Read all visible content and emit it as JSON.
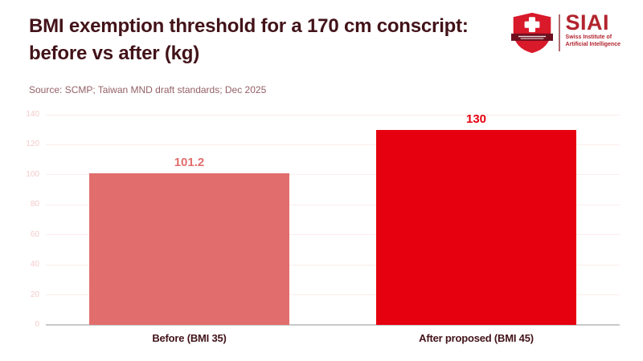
{
  "header": {
    "title": "BMI exemption threshold for a 170 cm conscript: before vs after (kg)",
    "source": "Source: SCMP; Taiwan MND draft standards; Dec 2025"
  },
  "logo": {
    "name": "SIAI",
    "subtitle_line1": "Swiss Institute of",
    "subtitle_line2": "Artificial Intelligence"
  },
  "chart_data": {
    "type": "bar",
    "title": "BMI exemption threshold for a 170 cm conscript: before vs after (kg)",
    "categories": [
      "Before (BMI 35)",
      "After proposed (BMI 45)"
    ],
    "values": [
      101.2,
      130
    ],
    "value_labels": [
      "101.2",
      "130"
    ],
    "bar_colors": [
      "#e26d6d",
      "#e6000f"
    ],
    "label_colors": [
      "#e26d6d",
      "#e6000f"
    ],
    "xlabel": "",
    "ylabel": "",
    "ylim": [
      0,
      140
    ],
    "yticks": [
      0,
      20,
      40,
      60,
      80,
      100,
      120,
      140
    ],
    "grid": true,
    "legend": false
  },
  "colors": {
    "background": "#ffffff",
    "title": "#421319",
    "source": "#936067",
    "tick_label": "#f7cbcb",
    "gridline": "#fdecec",
    "baseline": "#c8c8c8",
    "category_label": "#421319",
    "shield_red": "#d81a2a",
    "banner": "#6e0e1e",
    "logo_divider": "#b06a72",
    "logo_text": "#b2242e"
  }
}
